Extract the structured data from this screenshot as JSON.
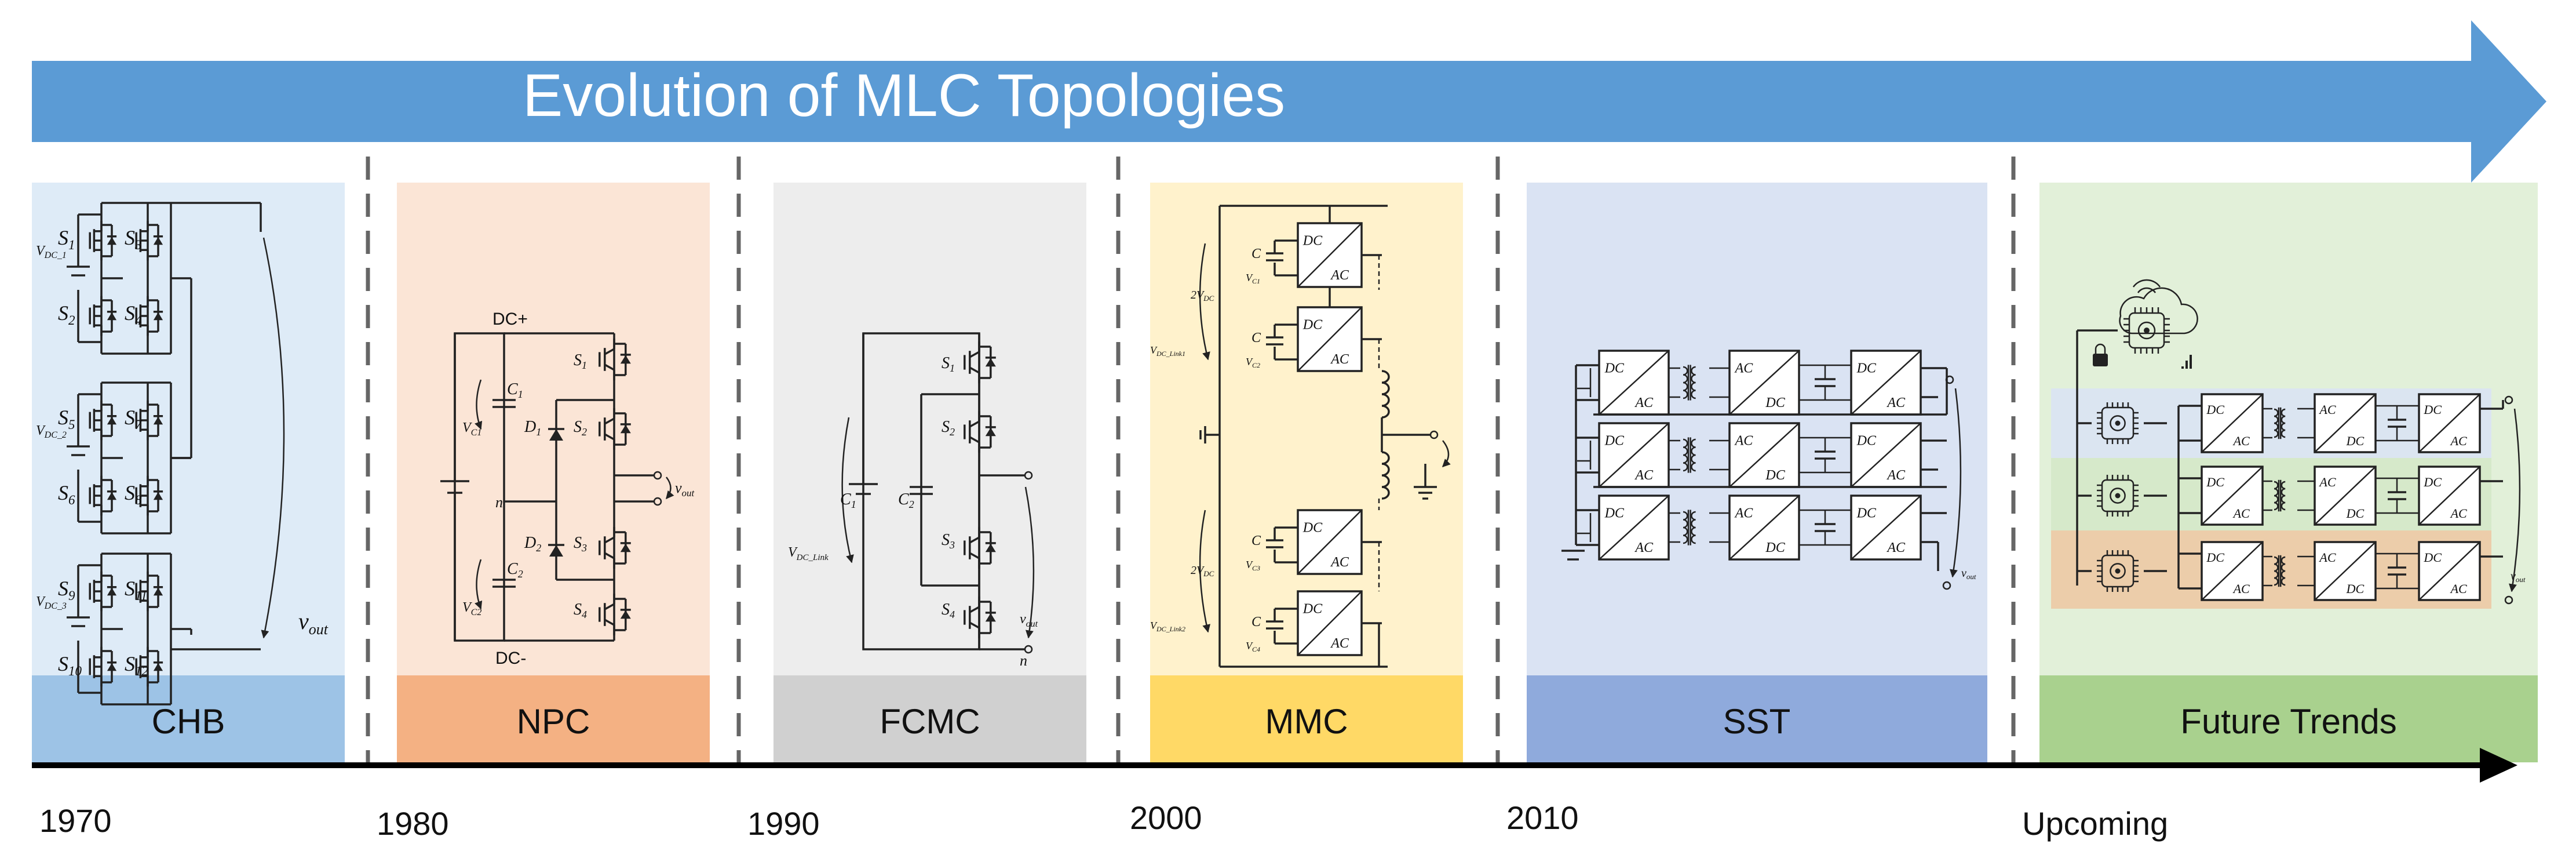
{
  "header": {
    "title": "Evolution of MLC Topologies"
  },
  "colors": {
    "arrow": "#5B9BD5",
    "chb_bg": "#DEEBF7",
    "chb_band": "#9DC3E6",
    "npc_bg": "#FBE5D6",
    "npc_band": "#F4B183",
    "fcmc_bg": "#EDEDED",
    "fcmc_band": "#D0D0D0",
    "mmc_bg": "#FFF2CC",
    "mmc_band": "#FFD966",
    "sst_bg": "#DAE3F3",
    "sst_band": "#8FAADC",
    "future_bg": "#E2F0D9",
    "future_band": "#A9D18E"
  },
  "topologies": [
    {
      "label": "CHB",
      "year": "1970"
    },
    {
      "label": "NPC",
      "year": "1980"
    },
    {
      "label": "FCMC",
      "year": "1990"
    },
    {
      "label": "MMC",
      "year": "2000"
    },
    {
      "label": "SST",
      "year": "2010"
    },
    {
      "label": "Future Trends",
      "year": "Upcoming"
    }
  ],
  "chb": {
    "switches": [
      "S",
      "S",
      "S",
      "S",
      "S",
      "S",
      "S",
      "S",
      "S",
      "S",
      "S",
      "S"
    ],
    "switch_subs": [
      "1",
      "3",
      "2",
      "4",
      "5",
      "7",
      "6",
      "8",
      "9",
      "11",
      "10",
      "12"
    ],
    "vdc": [
      "V",
      "V",
      "V"
    ],
    "vdc_subs": [
      "DC_1",
      "DC_2",
      "DC_3"
    ],
    "vout": "v",
    "vout_sub": "out"
  },
  "npc": {
    "dc_plus": "DC+",
    "dc_minus": "DC-",
    "neutral": "n",
    "caps": [
      "C",
      "C"
    ],
    "cap_subs": [
      "1",
      "2"
    ],
    "cap_v": [
      "V",
      "V"
    ],
    "cap_v_subs": [
      "C1",
      "C2"
    ],
    "diodes": [
      "D",
      "D"
    ],
    "diode_subs": [
      "1",
      "2"
    ],
    "switches": [
      "S",
      "S",
      "S",
      "S"
    ],
    "switch_subs": [
      "1",
      "2",
      "3",
      "4"
    ],
    "vout": "v",
    "vout_sub": "out"
  },
  "fcmc": {
    "caps": [
      "C",
      "C"
    ],
    "cap_subs": [
      "1",
      "2"
    ],
    "switches": [
      "S",
      "S",
      "S",
      "S"
    ],
    "switch_subs": [
      "1",
      "2",
      "3",
      "4"
    ],
    "vlink": "V",
    "vlink_sub": "DC_Link",
    "vout": "v",
    "vout_sub": "out",
    "neutral": "n"
  },
  "mmc": {
    "module_dc": "DC",
    "module_ac": "AC",
    "cap": "C",
    "vcaps": [
      "V",
      "V",
      "V",
      "V"
    ],
    "vcap_subs": [
      "C1",
      "C2",
      "C3",
      "C4"
    ],
    "two_v": [
      "2V",
      "2V"
    ],
    "two_v_subs": [
      "DC",
      "DC"
    ],
    "vlink": [
      "V",
      "V"
    ],
    "vlink_subs": [
      "DC_Link1",
      "DC_Link2"
    ]
  },
  "sst": {
    "dc": "DC",
    "ac": "AC",
    "vout": "v",
    "vout_sub": "out"
  },
  "future": {
    "dc": "DC",
    "ac": "AC",
    "vout": "v",
    "vout_sub": "out"
  }
}
